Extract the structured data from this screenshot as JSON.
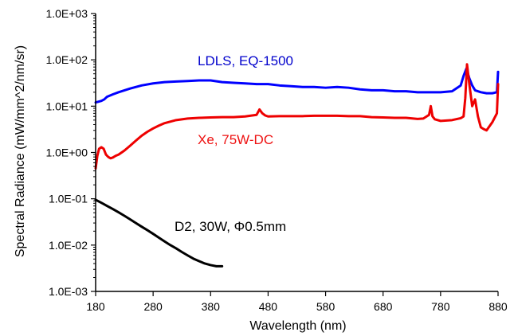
{
  "chart_data": {
    "type": "line",
    "xlabel": "Wavelength (nm)",
    "ylabel": "Spectral Radiance (mW/mm^2/nm/sr)",
    "xlim": [
      180,
      880
    ],
    "ylim": [
      0.001,
      1000
    ],
    "yscale": "log",
    "x_ticks": [
      180,
      280,
      380,
      480,
      580,
      680,
      780,
      880
    ],
    "x_tick_labels": [
      "180",
      "280",
      "380",
      "480",
      "580",
      "680",
      "780",
      "880"
    ],
    "y_ticks": [
      0.001,
      0.01,
      0.1,
      1,
      10,
      100,
      1000
    ],
    "y_tick_labels": [
      "1.0E-03",
      "1.0E-02",
      "1.0E-01",
      "1.0E+00",
      "1.0E+01",
      "1.0E+02",
      "1.0E+03"
    ],
    "grid": false,
    "legend": "none",
    "annotations": [
      {
        "text": "LDLS, EQ-1500",
        "color": "#0000cc"
      },
      {
        "text": "Xe, 75W-DC",
        "color": "#ee1111"
      },
      {
        "text": "D2, 30W, Φ0.5mm",
        "color": "#000000"
      }
    ],
    "series": [
      {
        "color": "#0000ff",
        "x": [
          180,
          185,
          190,
          195,
          200,
          210,
          220,
          240,
          260,
          280,
          300,
          320,
          340,
          360,
          380,
          400,
          420,
          440,
          460,
          480,
          500,
          520,
          540,
          560,
          580,
          600,
          620,
          640,
          660,
          680,
          700,
          720,
          740,
          760,
          780,
          800,
          815,
          820,
          825,
          830,
          835,
          840,
          850,
          860,
          870,
          878,
          880
        ],
        "y": [
          12,
          12.5,
          13,
          14,
          16,
          18,
          20,
          24,
          28,
          31,
          33,
          34,
          35,
          36,
          36,
          33,
          32,
          31,
          30,
          30,
          28,
          27,
          26,
          26,
          25,
          26,
          25,
          23,
          22,
          22,
          21,
          21,
          20,
          20,
          20,
          21,
          28,
          45,
          65,
          40,
          28,
          22,
          20,
          19,
          19,
          20,
          55
        ]
      },
      {
        "color": "#ee0000",
        "x": [
          180,
          183,
          186,
          190,
          194,
          198,
          202,
          206,
          210,
          215,
          220,
          230,
          240,
          250,
          260,
          270,
          280,
          290,
          300,
          320,
          340,
          360,
          380,
          400,
          420,
          440,
          460,
          465,
          470,
          475,
          480,
          500,
          520,
          540,
          560,
          580,
          600,
          620,
          640,
          660,
          680,
          700,
          720,
          740,
          750,
          760,
          763,
          766,
          770,
          780,
          800,
          815,
          820,
          823,
          826,
          830,
          835,
          840,
          845,
          850,
          855,
          860,
          870,
          878,
          880
        ],
        "y": [
          0.45,
          0.85,
          1.2,
          1.3,
          1.2,
          0.9,
          0.8,
          0.75,
          0.78,
          0.85,
          0.9,
          1.1,
          1.4,
          1.8,
          2.3,
          2.8,
          3.3,
          3.8,
          4.3,
          5,
          5.4,
          5.6,
          5.7,
          5.8,
          5.8,
          6,
          6.5,
          8.5,
          7,
          6.3,
          6,
          6.1,
          6.1,
          6.1,
          6.2,
          6.2,
          6.2,
          6.1,
          6.1,
          5.8,
          5.7,
          5.6,
          5.6,
          5.3,
          5.4,
          6.5,
          10,
          6,
          5.2,
          4.8,
          5,
          5.5,
          6,
          15,
          80,
          30,
          10,
          14,
          6,
          3.5,
          3.2,
          3,
          4.5,
          7,
          30
        ]
      },
      {
        "color": "#000000",
        "x": [
          180,
          190,
          200,
          210,
          220,
          230,
          240,
          250,
          260,
          270,
          280,
          290,
          300,
          310,
          320,
          330,
          340,
          350,
          360,
          370,
          380,
          390,
          400
        ],
        "y": [
          0.095,
          0.082,
          0.07,
          0.06,
          0.051,
          0.043,
          0.036,
          0.03,
          0.025,
          0.021,
          0.0175,
          0.0145,
          0.012,
          0.01,
          0.0085,
          0.0071,
          0.006,
          0.0051,
          0.0045,
          0.004,
          0.0037,
          0.0035,
          0.0035
        ]
      }
    ]
  }
}
